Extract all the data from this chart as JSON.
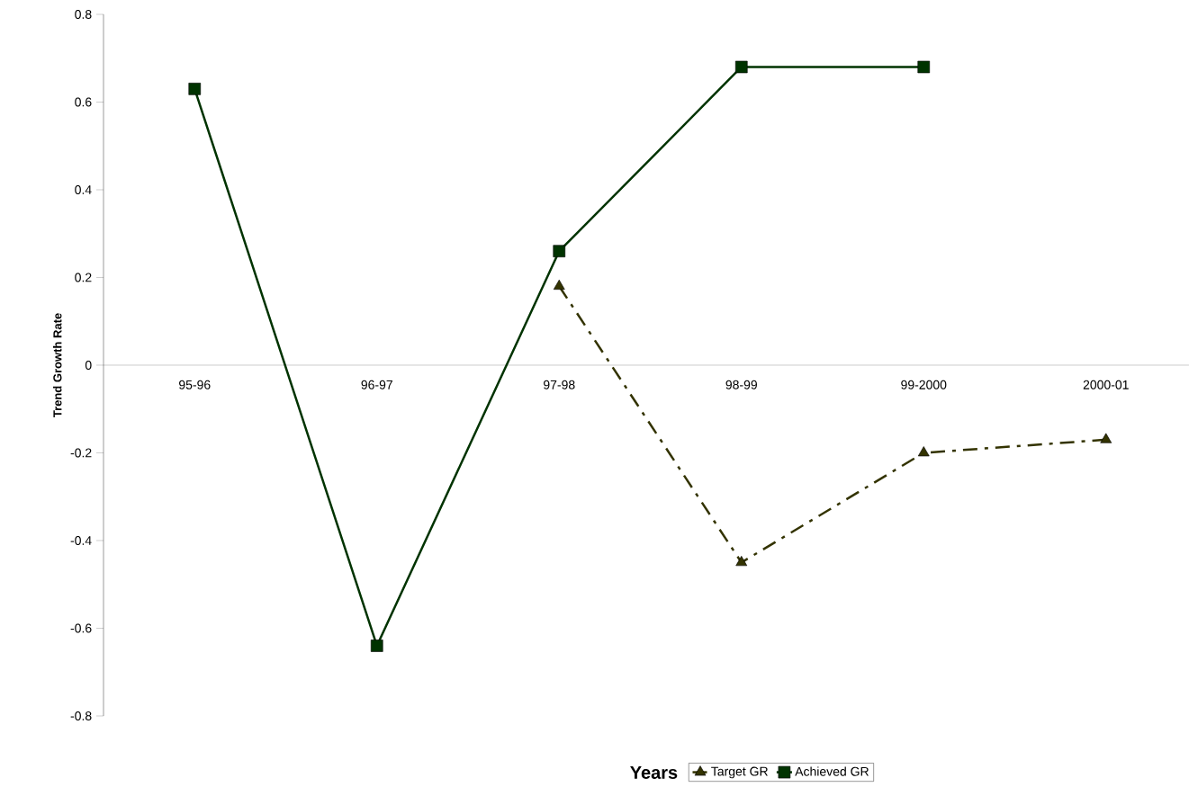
{
  "chart_data": {
    "type": "line",
    "xlabel": "Years",
    "ylabel": "Trend Growth Rate",
    "categories": [
      "95-96",
      "96-97",
      "97-98",
      "98-99",
      "99-2000",
      "2000-01"
    ],
    "series": [
      {
        "name": "Target GR",
        "color": "#333300",
        "marker": "triangle",
        "line_style": "dashdot",
        "values": [
          null,
          null,
          0.18,
          -0.45,
          -0.2,
          -0.17
        ]
      },
      {
        "name": "Achieved GR",
        "color": "#003300",
        "marker": "square",
        "line_style": "solid",
        "values": [
          0.63,
          -0.64,
          0.26,
          0.68,
          0.68,
          null
        ]
      }
    ],
    "ylim": [
      -0.8,
      0.8
    ],
    "yticks": [
      -0.8,
      -0.6,
      -0.4,
      -0.2,
      0,
      0.2,
      0.4,
      0.6,
      0.8
    ],
    "grid": false,
    "legend": "bottom"
  }
}
